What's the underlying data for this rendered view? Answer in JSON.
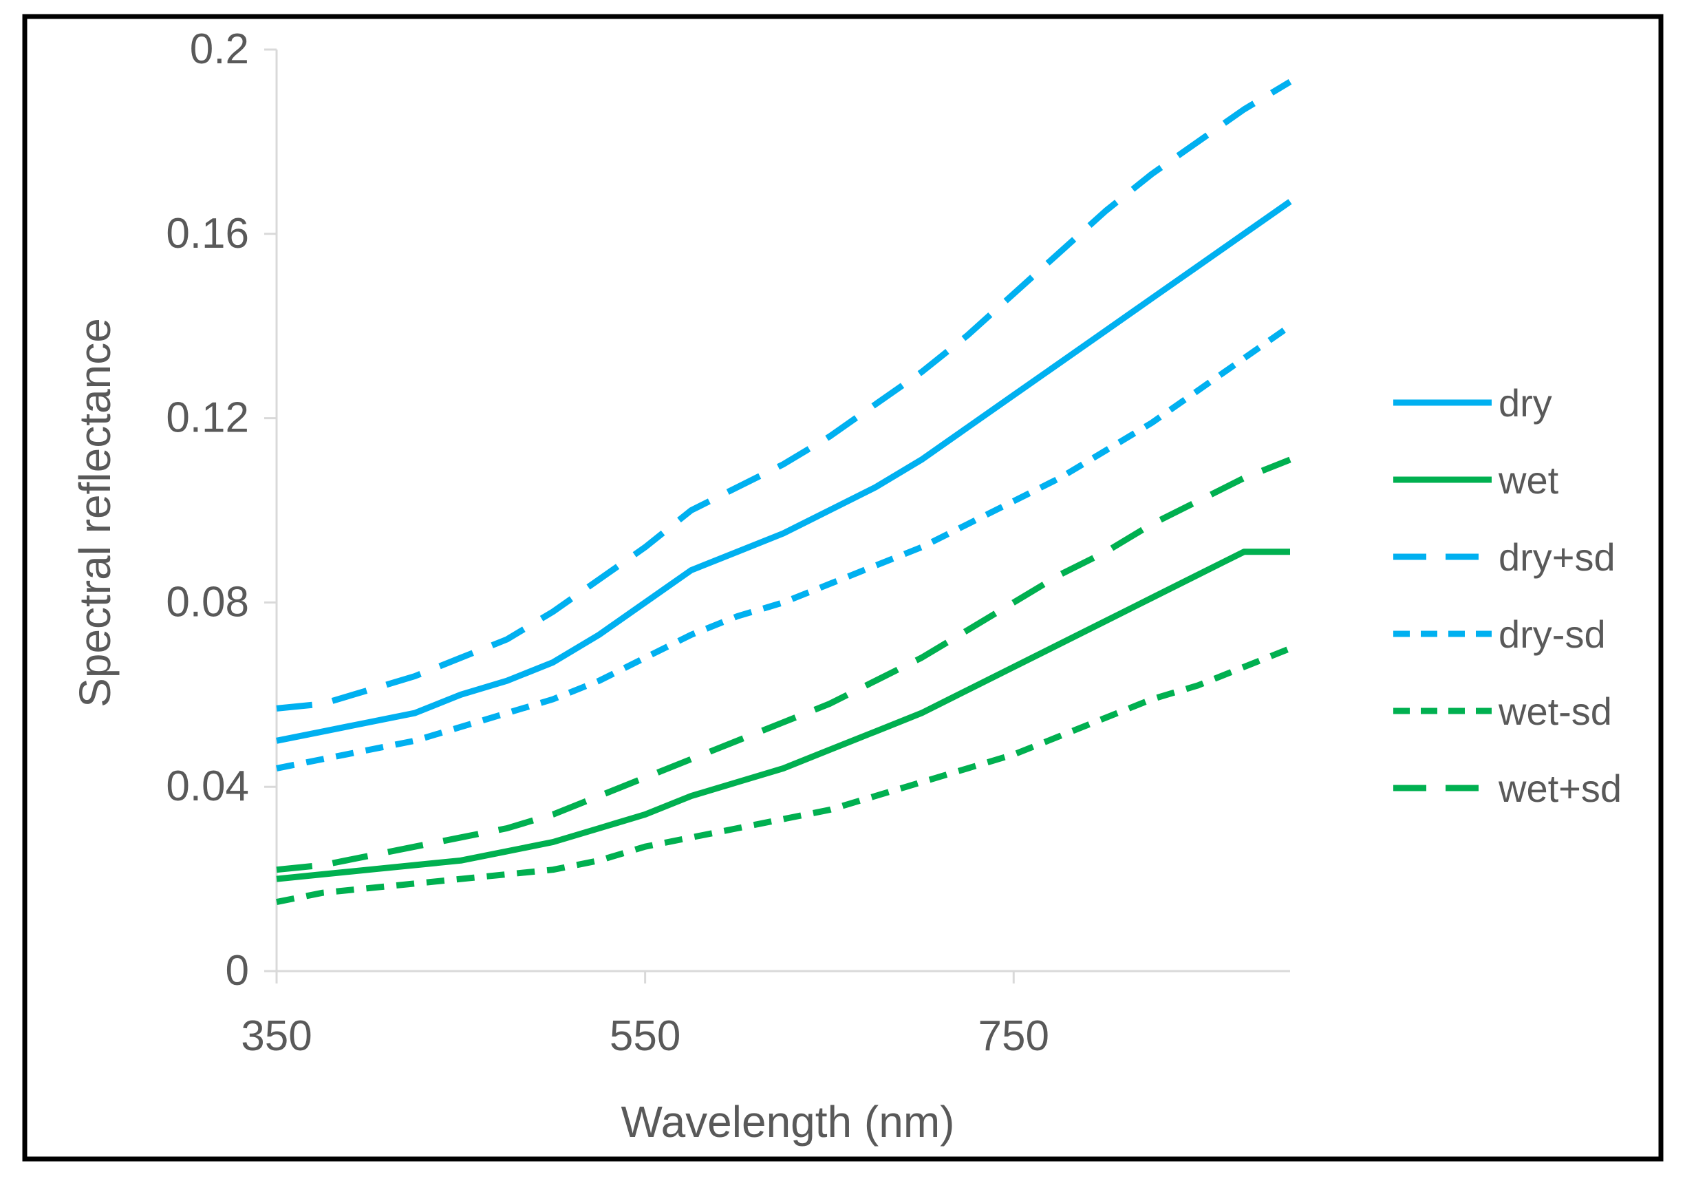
{
  "chart_data": {
    "type": "line",
    "title": "",
    "xlabel": "Wavelength (nm)",
    "ylabel": "Spectral reflectance",
    "xlim": [
      350,
      900
    ],
    "ylim": [
      0,
      0.2
    ],
    "x_ticks": [
      "350",
      "550",
      "750"
    ],
    "y_ticks": [
      "0",
      "0.04",
      "0.08",
      "0.12",
      "0.16",
      "0.2"
    ],
    "grid": false,
    "legend_position": "right",
    "x": [
      350,
      375,
      400,
      425,
      450,
      475,
      500,
      525,
      550,
      575,
      600,
      625,
      650,
      675,
      700,
      725,
      750,
      775,
      800,
      825,
      850,
      875,
      900
    ],
    "series": [
      {
        "name": "dry",
        "color": "#00B0F0",
        "style": "solid",
        "values": [
          0.05,
          0.052,
          0.054,
          0.056,
          0.06,
          0.063,
          0.067,
          0.073,
          0.08,
          0.087,
          0.091,
          0.095,
          0.1,
          0.105,
          0.111,
          0.118,
          0.125,
          0.132,
          0.139,
          0.146,
          0.153,
          0.16,
          0.167
        ]
      },
      {
        "name": "wet",
        "color": "#00B050",
        "style": "solid",
        "values": [
          0.02,
          0.021,
          0.022,
          0.023,
          0.024,
          0.026,
          0.028,
          0.031,
          0.034,
          0.038,
          0.041,
          0.044,
          0.048,
          0.052,
          0.056,
          0.061,
          0.066,
          0.071,
          0.076,
          0.081,
          0.086,
          0.091,
          0.091
        ]
      },
      {
        "name": "dry+sd",
        "color": "#00B0F0",
        "style": "long-dash",
        "values": [
          0.057,
          0.058,
          0.061,
          0.064,
          0.068,
          0.072,
          0.078,
          0.085,
          0.092,
          0.1,
          0.105,
          0.11,
          0.116,
          0.123,
          0.13,
          0.138,
          0.147,
          0.156,
          0.165,
          0.173,
          0.18,
          0.187,
          0.193
        ]
      },
      {
        "name": "dry-sd",
        "color": "#00B0F0",
        "style": "short-dash",
        "values": [
          0.044,
          0.046,
          0.048,
          0.05,
          0.053,
          0.056,
          0.059,
          0.063,
          0.068,
          0.073,
          0.077,
          0.08,
          0.084,
          0.088,
          0.092,
          0.097,
          0.102,
          0.107,
          0.113,
          0.119,
          0.126,
          0.133,
          0.14
        ]
      },
      {
        "name": "wet-sd",
        "color": "#00B050",
        "style": "short-dash",
        "values": [
          0.015,
          0.017,
          0.018,
          0.019,
          0.02,
          0.021,
          0.022,
          0.024,
          0.027,
          0.029,
          0.031,
          0.033,
          0.035,
          0.038,
          0.041,
          0.044,
          0.047,
          0.051,
          0.055,
          0.059,
          0.062,
          0.066,
          0.07
        ]
      },
      {
        "name": "wet+sd",
        "color": "#00B050",
        "style": "long-dash",
        "values": [
          0.022,
          0.023,
          0.025,
          0.027,
          0.029,
          0.031,
          0.034,
          0.038,
          0.042,
          0.046,
          0.05,
          0.054,
          0.058,
          0.063,
          0.068,
          0.074,
          0.08,
          0.086,
          0.091,
          0.097,
          0.102,
          0.107,
          0.111
        ]
      }
    ]
  }
}
